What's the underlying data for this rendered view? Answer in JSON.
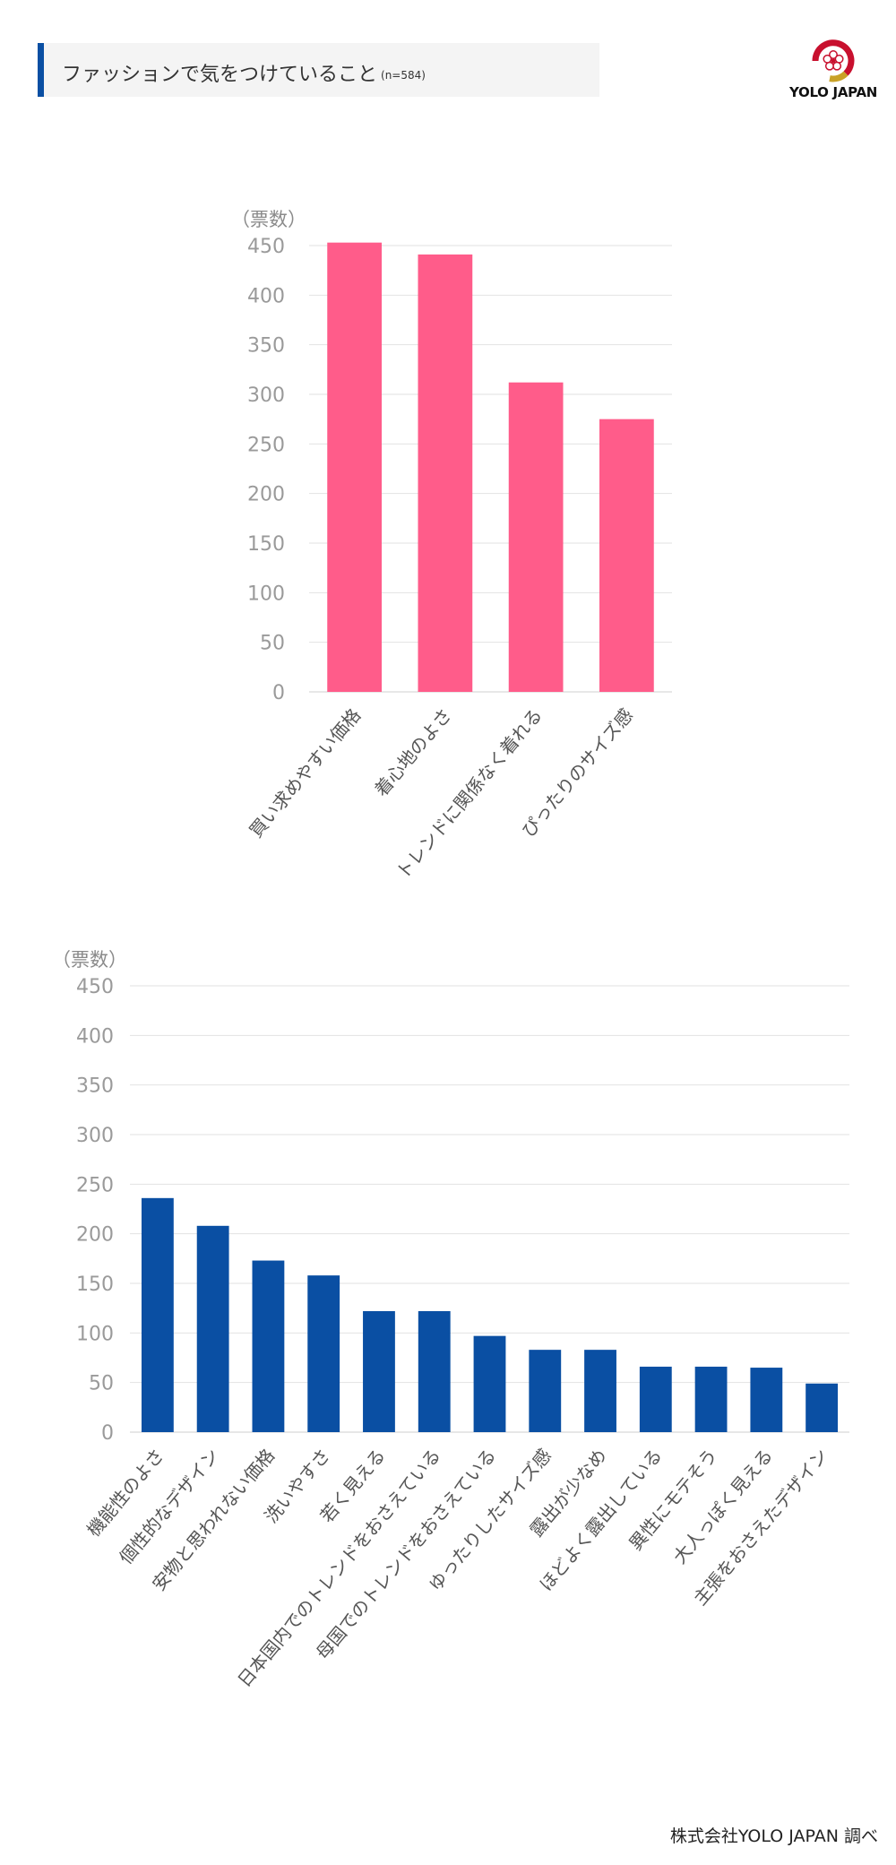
{
  "header": {
    "title": "ファッションで気をつけていること",
    "sample_size": "(n=584)"
  },
  "logo": {
    "text": "YOLO JAPAN",
    "icon": "sakura-logo-icon",
    "colors": {
      "red": "#c8102e",
      "gold": "#c9a227"
    }
  },
  "footer": {
    "source": "株式会社YOLO JAPAN 調べ"
  },
  "chart_data": [
    {
      "type": "bar",
      "ylabel": "（票数）",
      "ylim": [
        0,
        450
      ],
      "yticks": [
        0,
        50,
        100,
        150,
        200,
        250,
        300,
        350,
        400,
        450
      ],
      "grid": true,
      "color": "#ff5c8a",
      "categories": [
        "買い求めやすい価格",
        "着心地のよさ",
        "トレンドに関係なく着れる",
        "ぴったりのサイズ感"
      ],
      "values": [
        453,
        441,
        312,
        275
      ]
    },
    {
      "type": "bar",
      "ylabel": "（票数）",
      "ylim": [
        0,
        450
      ],
      "yticks": [
        0,
        50,
        100,
        150,
        200,
        250,
        300,
        350,
        400,
        450
      ],
      "grid": true,
      "color": "#0a4fa3",
      "categories": [
        "機能性のよさ",
        "個性的なデザイン",
        "安物と思われない価格",
        "洗いやすさ",
        "若く見える",
        "日本国内でのトレンドをおさえている",
        "母国でのトレンドをおさえている",
        "ゆったりしたサイズ感",
        "露出が少なめ",
        "ほどよく露出している",
        "異性にモテそう",
        "大人っぽく見える",
        "主張をおさえたデザイン"
      ],
      "values": [
        236,
        208,
        173,
        158,
        122,
        122,
        97,
        83,
        83,
        66,
        66,
        65,
        49
      ]
    }
  ]
}
